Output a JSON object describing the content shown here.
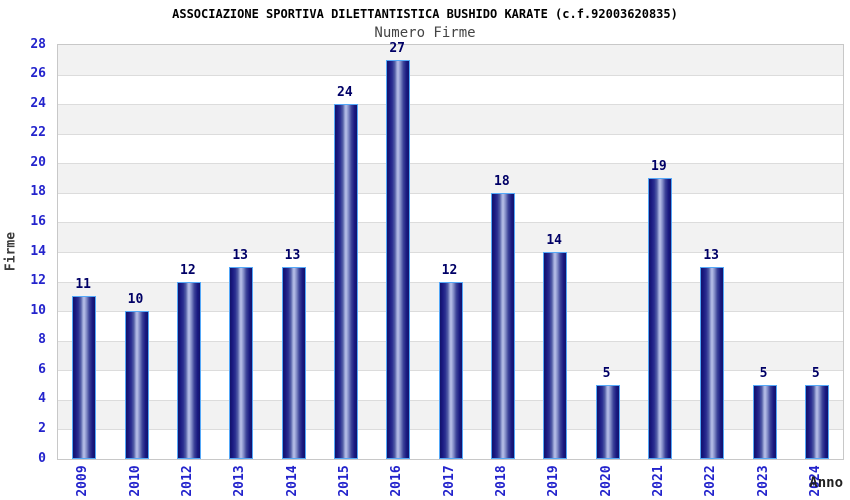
{
  "chart_data": {
    "type": "bar",
    "title": "ASSOCIAZIONE SPORTIVA DILETTANTISTICA BUSHIDO KARATE (c.f.92003620835)",
    "subtitle": "Numero Firme",
    "xlabel": "Anno",
    "ylabel": "Firme",
    "categories": [
      "2009",
      "2010",
      "2012",
      "2013",
      "2014",
      "2015",
      "2016",
      "2017",
      "2018",
      "2019",
      "2020",
      "2021",
      "2022",
      "2023",
      "2024"
    ],
    "values": [
      11,
      10,
      12,
      13,
      13,
      24,
      27,
      12,
      18,
      14,
      5,
      19,
      13,
      5,
      5
    ],
    "ylim": [
      0,
      28
    ],
    "ytick_step": 2,
    "grid": "horizontal-alternating-bands",
    "legend": "none",
    "colors": {
      "tick_label": "#2323cc",
      "value_label": "#000066",
      "title": "#000000",
      "subtitle": "#444444",
      "axis_title": "#333333",
      "band_gray": "#f2f2f2",
      "band_white": "#ffffff",
      "gridline": "#dcdcdc",
      "plot_border": "#c8c8c8",
      "bar_border": "#54a8f8",
      "bar_edge": "#12126b",
      "bar_center": "#a9b2df"
    }
  }
}
